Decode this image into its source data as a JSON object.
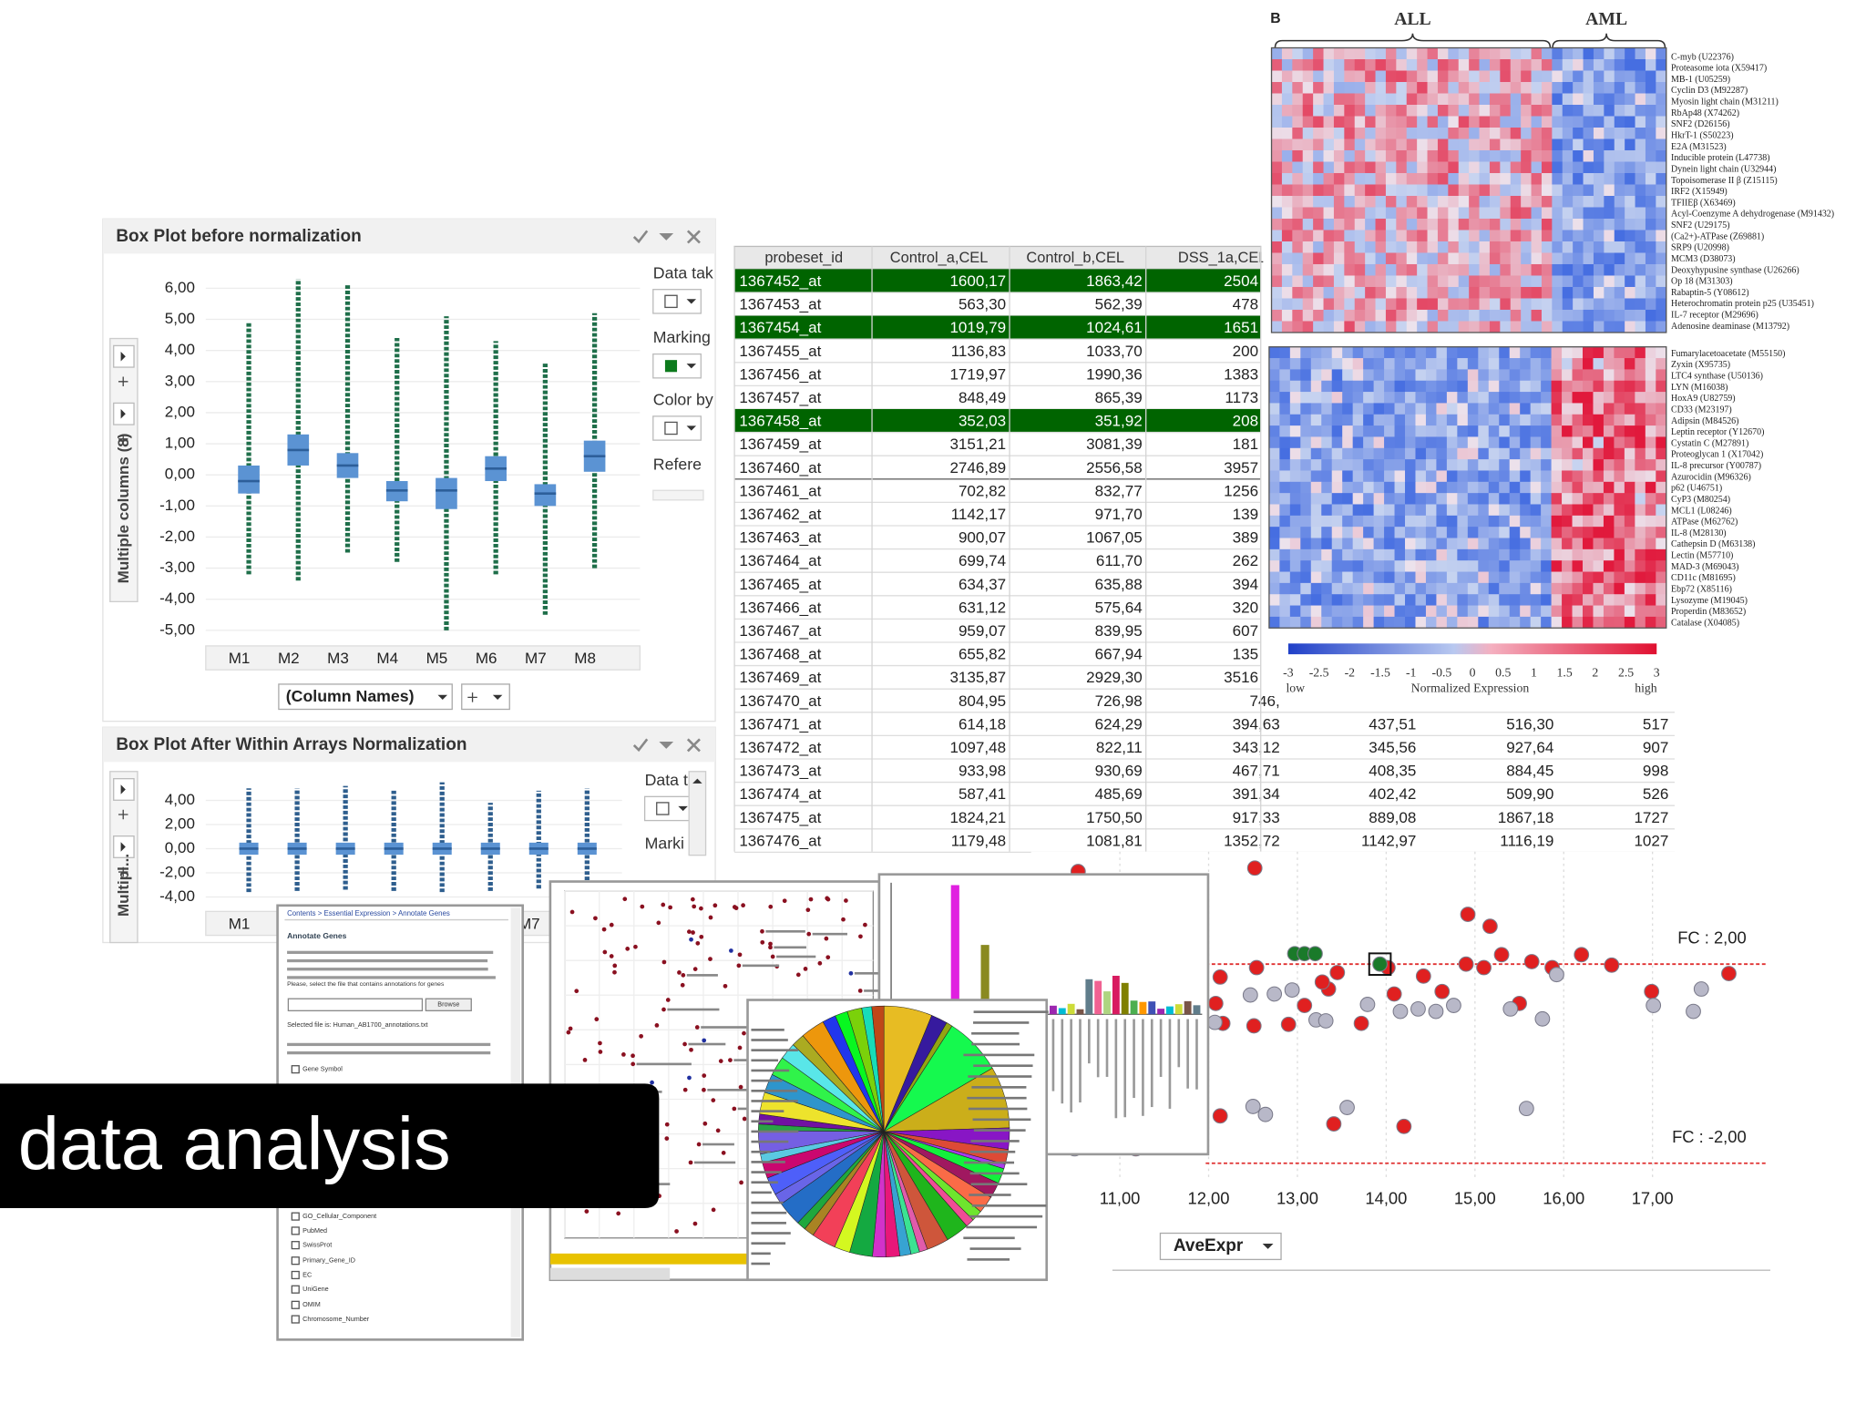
{
  "boxplot_before": {
    "title": "Box Plot before normalization",
    "y_label": "Multiple columns (8)",
    "x_selector": "(Column Names)",
    "side_labels": [
      "Data tak",
      "Marking",
      "Color by",
      "Refere"
    ],
    "categories": [
      "M1",
      "M2",
      "M3",
      "M4",
      "M5",
      "M6",
      "M7",
      "M8"
    ],
    "ylim": [
      -5.5,
      6.5
    ],
    "yticks": [
      {
        "value": 6,
        "label": "6,00"
      },
      {
        "value": 5,
        "label": "5,00"
      },
      {
        "value": 4,
        "label": "4,00"
      },
      {
        "value": 3,
        "label": "3,00"
      },
      {
        "value": 2,
        "label": "2,00"
      },
      {
        "value": 1,
        "label": "1,00"
      },
      {
        "value": 0,
        "label": "0,00"
      },
      {
        "value": -1,
        "label": "-1,00"
      },
      {
        "value": -2,
        "label": "-2,00"
      },
      {
        "value": -3,
        "label": "-3,00"
      },
      {
        "value": -4,
        "label": "-4,00"
      },
      {
        "value": -5,
        "label": "-5,00"
      }
    ],
    "grid": true,
    "box_color": "#5b93d3",
    "whisker_color": "#1f6f4a",
    "low": [
      -3.2,
      -3.4,
      -2.5,
      -2.8,
      -5.0,
      -3.2,
      -4.5,
      -3.0
    ],
    "q1": [
      -0.6,
      0.3,
      -0.1,
      -0.85,
      -1.1,
      -0.2,
      -1.0,
      0.1
    ],
    "median": [
      -0.2,
      0.8,
      0.3,
      -0.5,
      -0.5,
      0.2,
      -0.6,
      0.6
    ],
    "q3": [
      0.3,
      1.3,
      0.7,
      -0.2,
      -0.1,
      0.6,
      -0.3,
      1.1
    ],
    "high": [
      4.9,
      6.3,
      6.1,
      4.4,
      5.1,
      4.3,
      3.6,
      5.2
    ]
  },
  "boxplot_after": {
    "title": "Box Plot After Within Arrays Normalization",
    "y_label": "Multipl...",
    "side_labels": [
      "Data t",
      "Marki"
    ],
    "categories": [
      "M1",
      "M2",
      "M3",
      "M4",
      "M5",
      "M6",
      "M7",
      "M8"
    ],
    "ylim": [
      -5.2,
      6.1
    ],
    "yticks": [
      {
        "value": 4,
        "label": "4,00"
      },
      {
        "value": 2,
        "label": "2,00"
      },
      {
        "value": 0,
        "label": "0,00"
      },
      {
        "value": -2,
        "label": "-2,00"
      },
      {
        "value": -4,
        "label": "-4,00"
      }
    ],
    "grid": true,
    "box_color": "#5b93d3",
    "whisker_color": "#2e5e8e",
    "low": [
      -3.6,
      -3.5,
      -3.4,
      -3.5,
      -3.6,
      -3.5,
      -3.3,
      -3.5
    ],
    "q1": [
      -0.5,
      -0.5,
      -0.5,
      -0.5,
      -0.5,
      -0.5,
      -0.5,
      -0.5
    ],
    "median": [
      0,
      0,
      0,
      0,
      0,
      0,
      0,
      0
    ],
    "q3": [
      0.5,
      0.5,
      0.5,
      0.5,
      0.5,
      0.5,
      0.5,
      0.5
    ],
    "high": [
      5.0,
      5.0,
      5.2,
      4.8,
      5.5,
      3.8,
      4.8,
      5.0
    ]
  },
  "table": {
    "header": [
      "probeset_id",
      "Control_a,CEL",
      "Control_b,CEL",
      "DSS_1a,CEL"
    ],
    "highlighted_rows": [
      0,
      2,
      6
    ],
    "highlight_color": "#006400",
    "rows": [
      [
        "1367452_at",
        "1600,17",
        "1863,42",
        "2504"
      ],
      [
        "1367453_at",
        "563,30",
        "562,39",
        "478"
      ],
      [
        "1367454_at",
        "1019,79",
        "1024,61",
        "1651"
      ],
      [
        "1367455_at",
        "1136,83",
        "1033,70",
        "200"
      ],
      [
        "1367456_at",
        "1719,97",
        "1990,36",
        "1383"
      ],
      [
        "1367457_at",
        "848,49",
        "865,39",
        "1173"
      ],
      [
        "1367458_at",
        "352,03",
        "351,92",
        "208"
      ],
      [
        "1367459_at",
        "3151,21",
        "3081,39",
        "181"
      ],
      [
        "1367460_at",
        "2746,89",
        "2556,58",
        "3957"
      ],
      [
        "1367461_at",
        "702,82",
        "832,77",
        "1256"
      ],
      [
        "1367462_at",
        "1142,17",
        "971,70",
        "139"
      ],
      [
        "1367463_at",
        "900,07",
        "1067,05",
        "389"
      ],
      [
        "1367464_at",
        "699,74",
        "611,70",
        "262"
      ],
      [
        "1367465_at",
        "634,37",
        "635,88",
        "394"
      ],
      [
        "1367466_at",
        "631,12",
        "575,64",
        "320"
      ],
      [
        "1367467_at",
        "959,07",
        "839,95",
        "607"
      ],
      [
        "1367468_at",
        "655,82",
        "667,94",
        "135"
      ],
      [
        "1367469_at",
        "3135,87",
        "2929,30",
        "3516"
      ],
      [
        "1367470_at",
        "804,95",
        "726,98",
        "746,"
      ],
      [
        "1367471_at",
        "614,18",
        "624,29",
        "394,63",
        "437,51",
        "516,30",
        "517"
      ],
      [
        "1367472_at",
        "1097,48",
        "822,11",
        "343,12",
        "345,56",
        "927,64",
        "907"
      ],
      [
        "1367473_at",
        "933,98",
        "930,69",
        "467,71",
        "408,35",
        "884,45",
        "998"
      ],
      [
        "1367474_at",
        "587,41",
        "485,69",
        "391,34",
        "402,42",
        "509,90",
        "526"
      ],
      [
        "1367475_at",
        "1824,21",
        "1750,50",
        "917,33",
        "889,08",
        "1867,18",
        "1727"
      ],
      [
        "1367476_at",
        "1179,48",
        "1081,81",
        "1352,72",
        "1142,97",
        "1116,19",
        "1027"
      ]
    ]
  },
  "heatmap": {
    "panel_label": "B",
    "groups": [
      "ALL",
      "AML"
    ],
    "top_genes": [
      "C-myb (U22376)",
      "Proteasome iota (X59417)",
      "MB-1 (U05259)",
      "Cyclin D3 (M92287)",
      "Myosin light chain (M31211)",
      "RbAp48 (X74262)",
      "SNF2 (D26156)",
      "HkrT-1 (S50223)",
      "E2A (M31523)",
      "Inducible protein (L47738)",
      "Dynein light chain (U32944)",
      "Topoisomerase II β (Z15115)",
      "IRF2 (X15949)",
      "TFIIEβ (X63469)",
      "Acyl-Coenzyme A dehydrogenase (M91432)",
      "SNF2 (U29175)",
      "(Ca2+)-ATPase (Z69881)",
      "SRP9 (U20998)",
      "MCM3 (D38073)",
      "Deoxyhypusine synthase (U26266)",
      "Op 18 (M31303)",
      "Rabaptin-5 (Y08612)",
      "Heterochromatin protein p25 (U35451)",
      "IL-7 receptor (M29696)",
      "Adenosine deaminase (M13792)"
    ],
    "bottom_genes": [
      "Fumarylacetoacetate (M55150)",
      "Zyxin (X95735)",
      "LTC4 synthase (U50136)",
      "LYN (M16038)",
      "HoxA9 (U82759)",
      "CD33 (M23197)",
      "Adipsin (M84526)",
      "Leptin receptor (Y12670)",
      "Cystatin C (M27891)",
      "Proteoglycan 1 (X17042)",
      "IL-8 precursor (Y00787)",
      "Azurocidin (M96326)",
      "p62 (U46751)",
      "CyP3 (M80254)",
      "MCL1 (L08246)",
      "ATPase (M62762)",
      "IL-8 (M28130)",
      "Cathepsin D (M63138)",
      "Lectin (M57710)",
      "MAD-3 (M69043)",
      "CD11c (M81695)",
      "Ebp72 (X85116)",
      "Lysozyme (M19045)",
      "Properdin (M83652)",
      "Catalase (X04085)"
    ],
    "colorbar_lim": [
      -3,
      3
    ],
    "colorbar_ticks": [
      -3,
      -2.5,
      -2,
      -1.5,
      -1,
      -0.5,
      0,
      0.5,
      1,
      1.5,
      2,
      2.5,
      3
    ],
    "colorbar_low": "low",
    "colorbar_title": "Normalized Expression",
    "colorbar_high": "high"
  },
  "volcano": {
    "x_selector": "AveExpr",
    "xlim": [
      10,
      18.3
    ],
    "ylim": [
      -2.3,
      4.26
    ],
    "xticks": [
      {
        "value": 11,
        "label": "11,00"
      },
      {
        "value": 12,
        "label": "12,00"
      },
      {
        "value": 13,
        "label": "13,00"
      },
      {
        "value": 14,
        "label": "14,00"
      },
      {
        "value": 15,
        "label": "15,00"
      },
      {
        "value": 16,
        "label": "16,00"
      },
      {
        "value": 17,
        "label": "17,00"
      }
    ],
    "fc_lines": [
      {
        "value": 2,
        "label": "FC : 2,00"
      },
      {
        "value": -2,
        "label": "FC : -2,00"
      }
    ],
    "fc_color": "#e03030",
    "series": [
      {
        "color": "#e02020",
        "x": [
          10.53,
          12.52,
          14.92,
          15.17,
          12.13,
          12.08,
          12.54,
          13.08,
          13.35,
          13.45,
          13.28,
          14.02,
          14.42,
          14.63,
          14.9,
          15.1,
          15.3,
          15.64,
          15.87,
          16.2,
          16.54,
          16.99,
          17.86,
          15.5,
          14.09,
          12.16,
          12.51,
          12.9,
          13.72,
          13.41,
          14.2,
          12.13,
          11.18
        ],
        "y": [
          3.86,
          3.93,
          3.0,
          2.76,
          1.74,
          1.21,
          1.93,
          1.17,
          1.5,
          1.83,
          1.64,
          1.93,
          1.76,
          1.45,
          2.0,
          1.93,
          2.19,
          2.05,
          1.93,
          2.19,
          1.98,
          1.45,
          1.81,
          1.21,
          1.4,
          0.81,
          0.76,
          0.79,
          0.81,
          -1.21,
          -1.26,
          -1.05,
          -1.71
        ]
      },
      {
        "color": "#b8b8c8",
        "x": [
          12.47,
          12.74,
          12.94,
          13.21,
          13.32,
          13.79,
          14.16,
          14.36,
          14.56,
          14.76,
          15.4,
          15.76,
          15.92,
          17.01,
          17.46,
          17.55,
          12.07,
          12.5,
          12.64,
          13.56,
          15.58,
          10.49
        ],
        "y": [
          1.38,
          1.4,
          1.48,
          0.88,
          0.86,
          1.19,
          1.05,
          1.1,
          1.05,
          1.17,
          1.1,
          0.9,
          1.79,
          1.17,
          1.05,
          1.5,
          0.83,
          -0.86,
          -1.02,
          -0.88,
          -0.9,
          -1.71
        ]
      },
      {
        "color": "#1a7a2a",
        "x": [
          12.97,
          13.08,
          13.2,
          13.93
        ],
        "y": [
          2.21,
          2.21,
          2.21,
          2.0
        ]
      }
    ]
  },
  "annotate_window": {
    "breadcrumb": "Contents > Essential Expression > Annotate Genes",
    "heading": "Annotate Genes",
    "instruction": "Please, select the file that contains annotations for genes",
    "browse": "Browse",
    "selected_file": "Selected file is: Human_AB1700_annotations.txt",
    "checkboxes": [
      "Gene Symbol",
      "GO_Cellular_Component",
      "PubMed",
      "SwissProt",
      "Primary_Gene_ID",
      "EC",
      "UniGene",
      "OMIM",
      "Chromosome_Number"
    ]
  },
  "caption": "data analysis"
}
